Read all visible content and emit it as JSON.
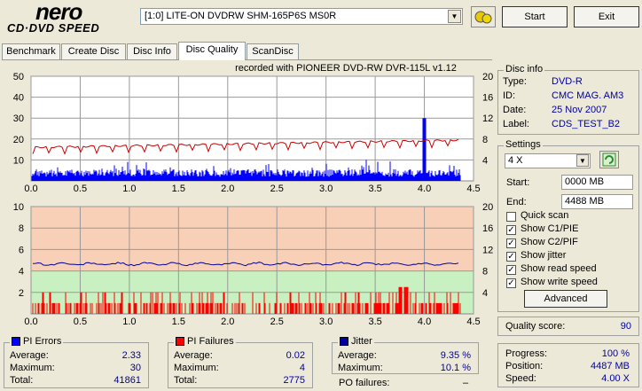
{
  "app": {
    "logo_top": "nero",
    "logo_bottom": "CD·DVD SPEED"
  },
  "drive": {
    "selected": "[1:0]  LITE-ON DVDRW SHM-165P6S MS0R"
  },
  "buttons": {
    "start": "Start",
    "exit": "Exit",
    "advanced": "Advanced"
  },
  "tabs": [
    "Benchmark",
    "Create Disc",
    "Disc Info",
    "Disc Quality",
    "ScanDisc"
  ],
  "recorded_with": "recorded with PIONEER  DVD-RW  DVR-115L v1.12",
  "disc_info": {
    "title": "Disc info",
    "type_label": "Type:",
    "type": "DVD-R",
    "id_label": "ID:",
    "id": "CMC MAG. AM3",
    "date_label": "Date:",
    "date": "25 Nov 2007",
    "label_label": "Label:",
    "label": "CDS_TEST_B2"
  },
  "settings": {
    "title": "Settings",
    "speed": "4 X",
    "start_label": "Start:",
    "start": "0000 MB",
    "end_label": "End:",
    "end": "4488 MB",
    "quick_scan": "Quick scan",
    "show_c1": "Show C1/PIE",
    "show_c2": "Show C2/PIF",
    "show_jitter": "Show jitter",
    "show_read": "Show read speed",
    "show_write": "Show write speed"
  },
  "quality": {
    "label": "Quality score:",
    "value": "90"
  },
  "progress": {
    "progress_label": "Progress:",
    "progress": "100 %",
    "position_label": "Position:",
    "position": "4487 MB",
    "speed_label": "Speed:",
    "speed": "4.00 X"
  },
  "pi_errors": {
    "title": "PI Errors",
    "avg_label": "Average:",
    "avg": "2.33",
    "max_label": "Maximum:",
    "max": "30",
    "total_label": "Total:",
    "total": "41861"
  },
  "pi_failures": {
    "title": "PI Failures",
    "avg_label": "Average:",
    "avg": "0.02",
    "max_label": "Maximum:",
    "max": "4",
    "total_label": "Total:",
    "total": "2775"
  },
  "jitter": {
    "title": "Jitter",
    "avg_label": "Average:",
    "avg": "9.35 %",
    "max_label": "Maximum:",
    "max": "10.1 %",
    "po_label": "PO failures:",
    "po": "–"
  },
  "colors": {
    "pie": "#0000ff",
    "pif": "#ff0000",
    "jitter": "#0000a0",
    "read_speed": "#cc0000",
    "band_high": "#f8d0b8",
    "band_low": "#c8f0c0"
  },
  "chart_data": [
    {
      "type": "bar",
      "title": "PI Errors",
      "x_ticks": [
        "0.0",
        "0.5",
        "1.0",
        "1.5",
        "2.0",
        "2.5",
        "3.0",
        "3.5",
        "4.0",
        "4.5"
      ],
      "y_ticks_left": [
        "10",
        "20",
        "30",
        "40",
        "50"
      ],
      "y_ticks_right": [
        "4",
        "8",
        "12",
        "16",
        "20"
      ],
      "xlim": [
        0,
        4.5
      ],
      "ylim": [
        0,
        50
      ],
      "y2lim": [
        0,
        20
      ]
    },
    {
      "type": "bar",
      "title": "PI Failures",
      "x_ticks": [
        "0.0",
        "0.5",
        "1.0",
        "1.5",
        "2.0",
        "2.5",
        "3.0",
        "3.5",
        "4.0",
        "4.5"
      ],
      "y_ticks_left": [
        "2",
        "4",
        "6",
        "8",
        "10"
      ],
      "y_ticks_right": [
        "4",
        "8",
        "12",
        "16",
        "20"
      ],
      "xlim": [
        0,
        4.5
      ],
      "ylim": [
        0,
        10
      ],
      "y2lim": [
        0,
        20
      ]
    }
  ]
}
